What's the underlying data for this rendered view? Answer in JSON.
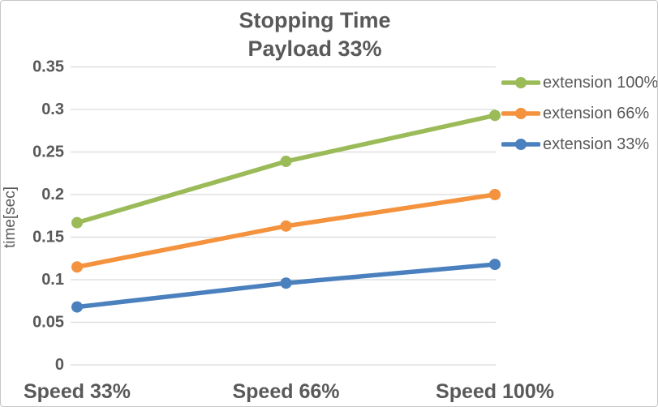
{
  "chart_data": {
    "type": "line",
    "title": "Stopping Time",
    "subtitle": "Payload 33%",
    "ylabel": "time[sec]",
    "xlabel": "",
    "categories": [
      "Speed 33%",
      "Speed 66%",
      "Speed 100%"
    ],
    "series": [
      {
        "name": "extension 100%",
        "color": "#9BBB59",
        "values": [
          0.167,
          0.239,
          0.293
        ]
      },
      {
        "name": "extension 66%",
        "color": "#F4923E",
        "values": [
          0.115,
          0.163,
          0.2
        ]
      },
      {
        "name": "extension 33%",
        "color": "#4A80BD",
        "values": [
          0.068,
          0.096,
          0.118
        ]
      }
    ],
    "ylim": [
      0,
      0.35
    ],
    "yticks": [
      "0",
      "0.05",
      "0.1",
      "0.15",
      "0.2",
      "0.25",
      "0.3",
      "0.35"
    ],
    "grid": true,
    "grid_color": "#D9D9D9",
    "text_color": "#595959",
    "legend_position": "right"
  }
}
